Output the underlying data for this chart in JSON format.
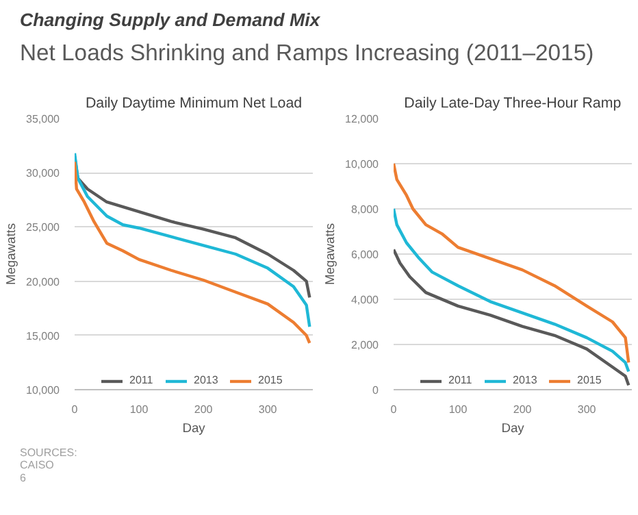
{
  "chart_data": [
    {
      "type": "line",
      "title": "Daily Daytime Minimum Net Load",
      "xlabel": "Day",
      "ylabel": "Megawatts",
      "xlim": [
        0,
        370
      ],
      "xticks": [
        0,
        100,
        200,
        300
      ],
      "ylim": [
        10000,
        35000
      ],
      "yticks": [
        {
          "value": 10000,
          "label": "10,000"
        },
        {
          "value": 15000,
          "label": "15,000"
        },
        {
          "value": 20000,
          "label": "20,000"
        },
        {
          "value": 25000,
          "label": "25,000"
        },
        {
          "value": 30000,
          "label": "30,000"
        },
        {
          "value": 35000,
          "label": "35,000"
        }
      ],
      "grid": "y",
      "legend": "bottom",
      "marker": "none",
      "line_style": "solid",
      "annotations": [
        "Changing Supply and Demand Mix",
        "Net Loads Shrinking and Ramps Increasing (2011–2015)",
        "SOURCES:",
        "CAISO",
        "6"
      ],
      "series": [
        {
          "name": "2011",
          "color": "#595959",
          "x": [
            0,
            5,
            20,
            50,
            100,
            150,
            200,
            250,
            300,
            340,
            360,
            365
          ],
          "values": [
            31500,
            29500,
            28500,
            27300,
            26400,
            25500,
            24800,
            24000,
            22500,
            21000,
            20000,
            18500
          ]
        },
        {
          "name": "2013",
          "color": "#1fb8d6",
          "x": [
            0,
            5,
            20,
            50,
            75,
            100,
            150,
            200,
            250,
            300,
            340,
            360,
            365
          ],
          "values": [
            31800,
            29500,
            27800,
            26000,
            25200,
            24900,
            24100,
            23300,
            22500,
            21200,
            19500,
            17800,
            15800
          ]
        },
        {
          "name": "2015",
          "color": "#ed7d31",
          "x": [
            0,
            3,
            15,
            30,
            50,
            75,
            100,
            150,
            200,
            250,
            300,
            340,
            360,
            365
          ],
          "values": [
            31000,
            28500,
            27300,
            25500,
            23500,
            22800,
            22000,
            21000,
            20100,
            19000,
            17900,
            16200,
            15000,
            14300
          ]
        }
      ]
    },
    {
      "type": "line",
      "title": "Daily Late-Day Three-Hour Ramp",
      "xlabel": "Day",
      "ylabel": "Megawatts",
      "xlim": [
        0,
        370
      ],
      "xticks": [
        0,
        100,
        200,
        300
      ],
      "ylim": [
        0,
        12000
      ],
      "yticks": [
        0,
        {
          "value": 2000,
          "label": "2,000"
        },
        {
          "value": 4000,
          "label": "4,000"
        },
        {
          "value": 6000,
          "label": "6,000"
        },
        {
          "value": 8000,
          "label": "8,000"
        },
        {
          "value": 10000,
          "label": "10,000"
        },
        {
          "value": 12000,
          "label": "12,000"
        }
      ],
      "grid": "y",
      "legend": "bottom",
      "marker": "none",
      "line_style": "solid",
      "series": [
        {
          "name": "2011",
          "color": "#595959",
          "x": [
            0,
            10,
            25,
            50,
            100,
            150,
            200,
            250,
            300,
            340,
            360,
            365
          ],
          "values": [
            6200,
            5600,
            5000,
            4300,
            3700,
            3300,
            2800,
            2400,
            1800,
            1000,
            600,
            200
          ]
        },
        {
          "name": "2013",
          "color": "#1fb8d6",
          "x": [
            0,
            5,
            20,
            40,
            60,
            100,
            150,
            200,
            250,
            300,
            340,
            360,
            365
          ],
          "values": [
            8000,
            7300,
            6500,
            5800,
            5200,
            4600,
            3900,
            3400,
            2900,
            2300,
            1700,
            1200,
            800
          ]
        },
        {
          "name": "2015",
          "color": "#ed7d31",
          "x": [
            0,
            5,
            20,
            30,
            50,
            75,
            100,
            150,
            200,
            250,
            300,
            340,
            360,
            365
          ],
          "values": [
            10000,
            9300,
            8600,
            8000,
            7300,
            6900,
            6300,
            5800,
            5300,
            4600,
            3700,
            3000,
            2300,
            1200
          ]
        }
      ]
    }
  ]
}
